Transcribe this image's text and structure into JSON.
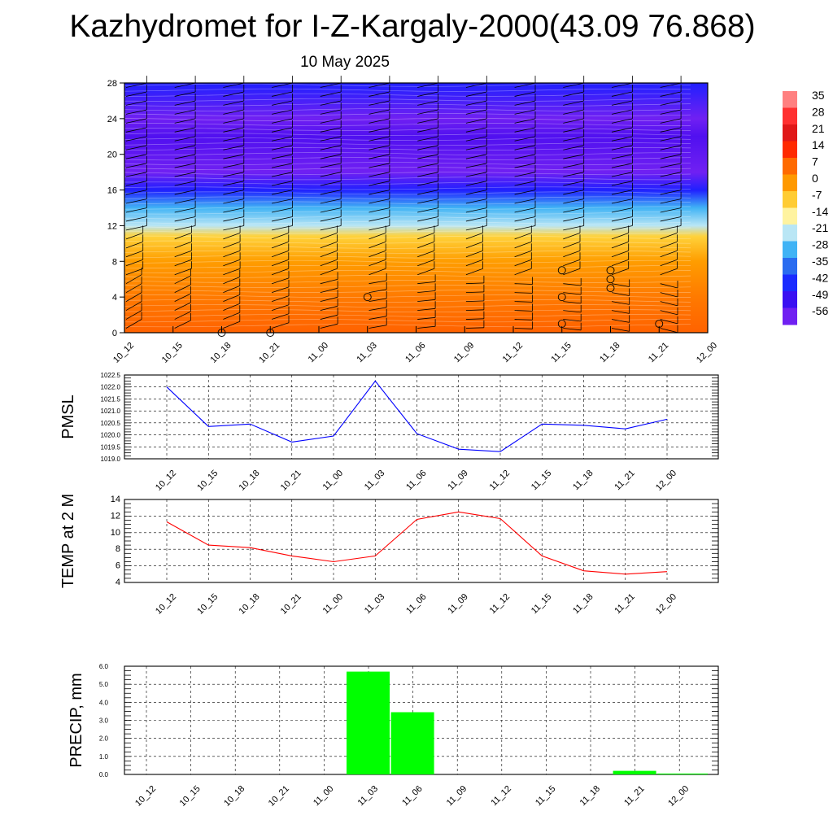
{
  "header": {
    "title": "Kazhydromet for I-Z-Kargaly-2000(43.09 76.868)",
    "subtitle": "10 May 2025"
  },
  "colors": {
    "pmsl_line": "#0000ff",
    "temp_line": "#ff0000",
    "precip_bar": "#00ff00",
    "grid": "#000000"
  },
  "chart_data": [
    {
      "id": "cross_section",
      "type": "heatmap",
      "title": "",
      "x_tick_labels": [
        "10_12",
        "10_15",
        "10_18",
        "10_21",
        "11_00",
        "11_03",
        "11_06",
        "11_09",
        "11_12",
        "11_15",
        "11_18",
        "11_21",
        "12_00"
      ],
      "y_ticks": [
        0,
        4,
        8,
        12,
        16,
        20,
        24,
        28
      ],
      "ylim": [
        0,
        28
      ],
      "vertical_profile": [
        {
          "level": 0,
          "value": 14
        },
        {
          "level": 4,
          "value": 10
        },
        {
          "level": 8,
          "value": 3
        },
        {
          "level": 10.8,
          "value": -6
        },
        {
          "level": 12,
          "value": -20
        },
        {
          "level": 14,
          "value": -32
        },
        {
          "level": 16,
          "value": -45
        },
        {
          "level": 18,
          "value": -55
        },
        {
          "level": 22,
          "value": -60
        },
        {
          "level": 24,
          "value": -52
        },
        {
          "level": 28,
          "value": -46
        }
      ],
      "colorbar": {
        "labels": [
          "35",
          "28",
          "21",
          "14",
          "7",
          "0",
          "-7",
          "-14",
          "-21",
          "-28",
          "-35",
          "-42",
          "-49",
          "-56"
        ],
        "colors": [
          "#ff8080",
          "#ff3030",
          "#e01818",
          "#ff2a00",
          "#ff6a00",
          "#ff9900",
          "#ffcc33",
          "#fff3a0",
          "#b9e6f5",
          "#40b3f5",
          "#2a6cf0",
          "#1a2bff",
          "#3a10f2",
          "#7020f2"
        ]
      },
      "precip_markers": [
        {
          "x": "10_18",
          "level": 0
        },
        {
          "x": "10_21",
          "level": 0
        },
        {
          "x": "11_03",
          "level": 4
        },
        {
          "x": "11_15",
          "level": 7
        },
        {
          "x": "11_15",
          "level": 4
        },
        {
          "x": "11_15",
          "level": 1
        },
        {
          "x": "11_18",
          "level": 7
        },
        {
          "x": "11_18",
          "level": 6
        },
        {
          "x": "11_18",
          "level": 5
        },
        {
          "x": "11_21",
          "level": 1
        }
      ]
    },
    {
      "id": "pmsl",
      "type": "line",
      "ylabel": "PMSL",
      "ylim": [
        1019.0,
        1022.5
      ],
      "y_ticks": [
        "1019.0",
        "1019.5",
        "1020.0",
        "1020.5",
        "1021.0",
        "1021.5",
        "1022.0",
        "1022.5"
      ],
      "categories": [
        "10_12",
        "10_15",
        "10_18",
        "10_21",
        "11_00",
        "11_03",
        "11_06",
        "11_09",
        "11_12",
        "11_15",
        "11_18",
        "11_21",
        "12_00"
      ],
      "values": [
        1022.0,
        1020.35,
        1020.45,
        1019.7,
        1019.95,
        1022.25,
        1020.05,
        1019.4,
        1019.3,
        1020.45,
        1020.4,
        1020.25,
        1020.65
      ]
    },
    {
      "id": "temp2m",
      "type": "line",
      "ylabel": "TEMP at 2 M",
      "ylim": [
        4,
        14
      ],
      "y_ticks": [
        "4",
        "6",
        "8",
        "10",
        "12",
        "14"
      ],
      "categories": [
        "10_12",
        "10_15",
        "10_18",
        "10_21",
        "11_00",
        "11_03",
        "11_06",
        "11_09",
        "11_12",
        "11_15",
        "11_18",
        "11_21",
        "12_00"
      ],
      "values": [
        11.3,
        8.5,
        8.2,
        7.2,
        6.5,
        7.2,
        11.6,
        12.5,
        11.7,
        7.2,
        5.4,
        5.0,
        5.3
      ]
    },
    {
      "id": "precip",
      "type": "bar",
      "ylabel": "PRECIP, mm",
      "ylim": [
        0,
        6
      ],
      "y_ticks": [
        "0.0",
        "1.0",
        "2.0",
        "3.0",
        "4.0",
        "5.0",
        "6.0"
      ],
      "categories": [
        "10_12",
        "10_15",
        "10_18",
        "10_21",
        "11_00",
        "11_03",
        "11_06",
        "11_09",
        "11_12",
        "11_15",
        "11_18",
        "11_21",
        "12_00"
      ],
      "values": [
        0,
        0,
        0,
        0,
        0,
        5.7,
        3.45,
        0,
        0,
        0,
        0,
        0.2,
        0.05
      ]
    }
  ]
}
